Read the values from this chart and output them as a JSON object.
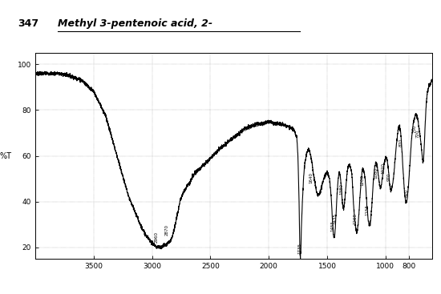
{
  "title_num": "347",
  "title_name": "Methyl 3-pentenoic acid, 2-",
  "ylabel": "%T",
  "xlim": [
    4000,
    600
  ],
  "ylim": [
    15,
    105
  ],
  "yticks": [
    20,
    40,
    60,
    80,
    100
  ],
  "xticks": [
    3500,
    3000,
    2500,
    2000,
    1500,
    1000,
    800
  ],
  "background_color": "#ffffff",
  "line_color": "#000000"
}
